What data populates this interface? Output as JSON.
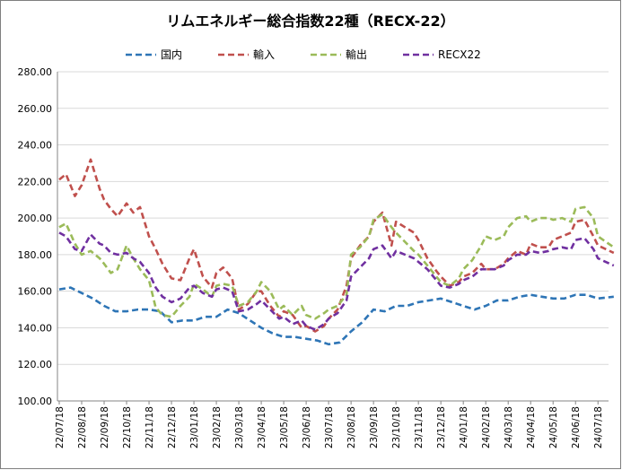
{
  "chart_data": {
    "type": "line",
    "title": "リムエネルギー総合指数22種（RECX-22）",
    "xlabel": "",
    "ylabel": "",
    "ylim": [
      100,
      280
    ],
    "yticks": [
      "100.00",
      "120.00",
      "140.00",
      "160.00",
      "180.00",
      "200.00",
      "220.00",
      "240.00",
      "260.00",
      "280.00"
    ],
    "x": [
      "22/07/18",
      "22/08/18",
      "22/09/18",
      "22/10/18",
      "22/11/18",
      "22/12/18",
      "23/01/18",
      "23/02/18",
      "23/03/18",
      "23/04/18",
      "23/05/18",
      "23/06/18",
      "23/07/18",
      "23/08/18",
      "23/09/18",
      "23/10/18",
      "23/11/18",
      "23/12/18",
      "24/01/18",
      "24/02/18",
      "24/03/18",
      "24/04/18",
      "24/05/18",
      "24/06/18",
      "24/07/18"
    ],
    "x_end": "24/08/10",
    "grid": true,
    "legend_position": "top",
    "series": [
      {
        "name": "国内",
        "color": "#2e75b6",
        "points": [
          [
            0,
            161
          ],
          [
            0.5,
            162
          ],
          [
            1,
            159
          ],
          [
            1.5,
            156
          ],
          [
            2,
            152
          ],
          [
            2.5,
            149
          ],
          [
            3,
            149
          ],
          [
            3.5,
            150
          ],
          [
            4,
            150
          ],
          [
            4.5,
            149
          ],
          [
            5,
            143
          ],
          [
            5.5,
            144
          ],
          [
            6,
            144
          ],
          [
            6.5,
            146
          ],
          [
            7,
            146
          ],
          [
            7.5,
            150
          ],
          [
            8,
            148
          ],
          [
            8.5,
            144
          ],
          [
            9,
            140
          ],
          [
            9.5,
            137
          ],
          [
            10,
            135
          ],
          [
            10.5,
            135
          ],
          [
            11,
            134
          ],
          [
            11.5,
            133
          ],
          [
            12,
            131
          ],
          [
            12.5,
            132
          ],
          [
            13,
            138
          ],
          [
            13.5,
            143
          ],
          [
            14,
            150
          ],
          [
            14.5,
            149
          ],
          [
            15,
            152
          ],
          [
            15.5,
            152
          ],
          [
            16,
            154
          ],
          [
            16.5,
            155
          ],
          [
            17,
            156
          ],
          [
            17.5,
            154
          ],
          [
            18,
            152
          ],
          [
            18.5,
            150
          ],
          [
            19,
            152
          ],
          [
            19.5,
            155
          ],
          [
            20,
            155
          ],
          [
            20.5,
            157
          ],
          [
            21,
            158
          ],
          [
            21.5,
            157
          ],
          [
            22,
            156
          ],
          [
            22.5,
            156
          ],
          [
            23,
            158
          ],
          [
            23.5,
            158
          ],
          [
            24,
            156
          ],
          [
            24.7,
            157
          ]
        ]
      },
      {
        "name": "輸入",
        "color": "#c0504d",
        "points": [
          [
            0,
            221
          ],
          [
            0.3,
            224
          ],
          [
            0.7,
            212
          ],
          [
            1,
            218
          ],
          [
            1.4,
            232
          ],
          [
            1.8,
            216
          ],
          [
            2,
            210
          ],
          [
            2.3,
            205
          ],
          [
            2.6,
            201
          ],
          [
            3,
            208
          ],
          [
            3.3,
            203
          ],
          [
            3.6,
            206
          ],
          [
            4,
            190
          ],
          [
            4.3,
            183
          ],
          [
            4.6,
            175
          ],
          [
            5,
            167
          ],
          [
            5.4,
            166
          ],
          [
            5.8,
            178
          ],
          [
            6,
            183
          ],
          [
            6.4,
            168
          ],
          [
            6.8,
            162
          ],
          [
            7,
            170
          ],
          [
            7.3,
            173
          ],
          [
            7.7,
            167
          ],
          [
            8,
            150
          ],
          [
            8.4,
            153
          ],
          [
            8.8,
            160
          ],
          [
            9,
            160
          ],
          [
            9.4,
            152
          ],
          [
            9.8,
            146
          ],
          [
            10,
            149
          ],
          [
            10.4,
            147
          ],
          [
            10.8,
            140
          ],
          [
            11,
            141
          ],
          [
            11.4,
            138
          ],
          [
            11.8,
            141
          ],
          [
            12,
            145
          ],
          [
            12.4,
            150
          ],
          [
            12.8,
            163
          ],
          [
            13,
            178
          ],
          [
            13.4,
            185
          ],
          [
            13.8,
            190
          ],
          [
            14,
            198
          ],
          [
            14.4,
            203
          ],
          [
            14.8,
            185
          ],
          [
            15,
            198
          ],
          [
            15.4,
            195
          ],
          [
            15.8,
            192
          ],
          [
            16,
            188
          ],
          [
            16.4,
            178
          ],
          [
            16.8,
            171
          ],
          [
            17,
            168
          ],
          [
            17.4,
            163
          ],
          [
            17.8,
            165
          ],
          [
            18,
            168
          ],
          [
            18.4,
            170
          ],
          [
            18.8,
            175
          ],
          [
            19,
            172
          ],
          [
            19.4,
            172
          ],
          [
            19.8,
            175
          ],
          [
            20,
            178
          ],
          [
            20.4,
            182
          ],
          [
            20.8,
            180
          ],
          [
            21,
            186
          ],
          [
            21.4,
            184
          ],
          [
            21.8,
            184
          ],
          [
            22,
            188
          ],
          [
            22.4,
            190
          ],
          [
            22.8,
            192
          ],
          [
            23,
            198
          ],
          [
            23.4,
            199
          ],
          [
            23.8,
            190
          ],
          [
            24,
            185
          ],
          [
            24.7,
            181
          ]
        ]
      },
      {
        "name": "輸出",
        "color": "#9bbb59",
        "points": [
          [
            0,
            195
          ],
          [
            0.3,
            197
          ],
          [
            0.7,
            186
          ],
          [
            1,
            180
          ],
          [
            1.4,
            182
          ],
          [
            1.8,
            178
          ],
          [
            2,
            175
          ],
          [
            2.3,
            170
          ],
          [
            2.6,
            172
          ],
          [
            3,
            185
          ],
          [
            3.3,
            178
          ],
          [
            3.6,
            172
          ],
          [
            4,
            166
          ],
          [
            4.3,
            151
          ],
          [
            4.6,
            147
          ],
          [
            5,
            146
          ],
          [
            5.4,
            152
          ],
          [
            5.8,
            157
          ],
          [
            6,
            164
          ],
          [
            6.4,
            161
          ],
          [
            6.8,
            157
          ],
          [
            7,
            163
          ],
          [
            7.3,
            164
          ],
          [
            7.7,
            163
          ],
          [
            8,
            152
          ],
          [
            8.4,
            154
          ],
          [
            8.8,
            160
          ],
          [
            9,
            165
          ],
          [
            9.4,
            160
          ],
          [
            9.8,
            150
          ],
          [
            10,
            152
          ],
          [
            10.4,
            147
          ],
          [
            10.8,
            152
          ],
          [
            11,
            147
          ],
          [
            11.4,
            145
          ],
          [
            11.8,
            148
          ],
          [
            12,
            150
          ],
          [
            12.4,
            152
          ],
          [
            12.8,
            158
          ],
          [
            13,
            180
          ],
          [
            13.4,
            184
          ],
          [
            13.8,
            190
          ],
          [
            14,
            199
          ],
          [
            14.4,
            202
          ],
          [
            14.8,
            195
          ],
          [
            15,
            192
          ],
          [
            15.4,
            187
          ],
          [
            15.8,
            182
          ],
          [
            16,
            180
          ],
          [
            16.4,
            174
          ],
          [
            16.8,
            168
          ],
          [
            17,
            165
          ],
          [
            17.4,
            163
          ],
          [
            17.8,
            167
          ],
          [
            18,
            172
          ],
          [
            18.4,
            177
          ],
          [
            18.8,
            185
          ],
          [
            19,
            190
          ],
          [
            19.4,
            188
          ],
          [
            19.8,
            190
          ],
          [
            20,
            195
          ],
          [
            20.4,
            200
          ],
          [
            20.8,
            201
          ],
          [
            21,
            198
          ],
          [
            21.4,
            200
          ],
          [
            21.8,
            200
          ],
          [
            22,
            199
          ],
          [
            22.4,
            200
          ],
          [
            22.8,
            198
          ],
          [
            23,
            205
          ],
          [
            23.4,
            206
          ],
          [
            23.8,
            200
          ],
          [
            24,
            190
          ],
          [
            24.7,
            184
          ]
        ]
      },
      {
        "name": "RECX22",
        "color": "#7030a0",
        "points": [
          [
            0,
            192
          ],
          [
            0.3,
            190
          ],
          [
            0.7,
            183
          ],
          [
            1,
            182
          ],
          [
            1.4,
            191
          ],
          [
            1.8,
            186
          ],
          [
            2,
            185
          ],
          [
            2.3,
            181
          ],
          [
            2.6,
            180
          ],
          [
            3,
            181
          ],
          [
            3.3,
            178
          ],
          [
            3.6,
            176
          ],
          [
            4,
            170
          ],
          [
            4.3,
            162
          ],
          [
            4.6,
            157
          ],
          [
            5,
            154
          ],
          [
            5.4,
            156
          ],
          [
            5.8,
            162
          ],
          [
            6,
            163
          ],
          [
            6.4,
            159
          ],
          [
            6.8,
            157
          ],
          [
            7,
            161
          ],
          [
            7.3,
            162
          ],
          [
            7.7,
            160
          ],
          [
            8,
            149
          ],
          [
            8.4,
            150
          ],
          [
            8.8,
            153
          ],
          [
            9,
            155
          ],
          [
            9.4,
            150
          ],
          [
            9.8,
            145
          ],
          [
            10,
            146
          ],
          [
            10.4,
            142
          ],
          [
            10.8,
            144
          ],
          [
            11,
            141
          ],
          [
            11.4,
            139
          ],
          [
            11.8,
            142
          ],
          [
            12,
            145
          ],
          [
            12.4,
            148
          ],
          [
            12.8,
            155
          ],
          [
            13,
            168
          ],
          [
            13.4,
            173
          ],
          [
            13.8,
            178
          ],
          [
            14,
            183
          ],
          [
            14.4,
            185
          ],
          [
            14.8,
            178
          ],
          [
            15,
            182
          ],
          [
            15.4,
            180
          ],
          [
            15.8,
            178
          ],
          [
            16,
            176
          ],
          [
            16.4,
            172
          ],
          [
            16.8,
            166
          ],
          [
            17,
            163
          ],
          [
            17.4,
            162
          ],
          [
            17.8,
            164
          ],
          [
            18,
            166
          ],
          [
            18.4,
            168
          ],
          [
            18.8,
            172
          ],
          [
            19,
            172
          ],
          [
            19.4,
            172
          ],
          [
            19.8,
            174
          ],
          [
            20,
            177
          ],
          [
            20.4,
            180
          ],
          [
            20.8,
            180
          ],
          [
            21,
            182
          ],
          [
            21.4,
            181
          ],
          [
            21.8,
            182
          ],
          [
            22,
            183
          ],
          [
            22.4,
            184
          ],
          [
            22.8,
            183
          ],
          [
            23,
            188
          ],
          [
            23.4,
            189
          ],
          [
            23.8,
            183
          ],
          [
            24,
            178
          ],
          [
            24.7,
            174
          ]
        ]
      }
    ]
  }
}
